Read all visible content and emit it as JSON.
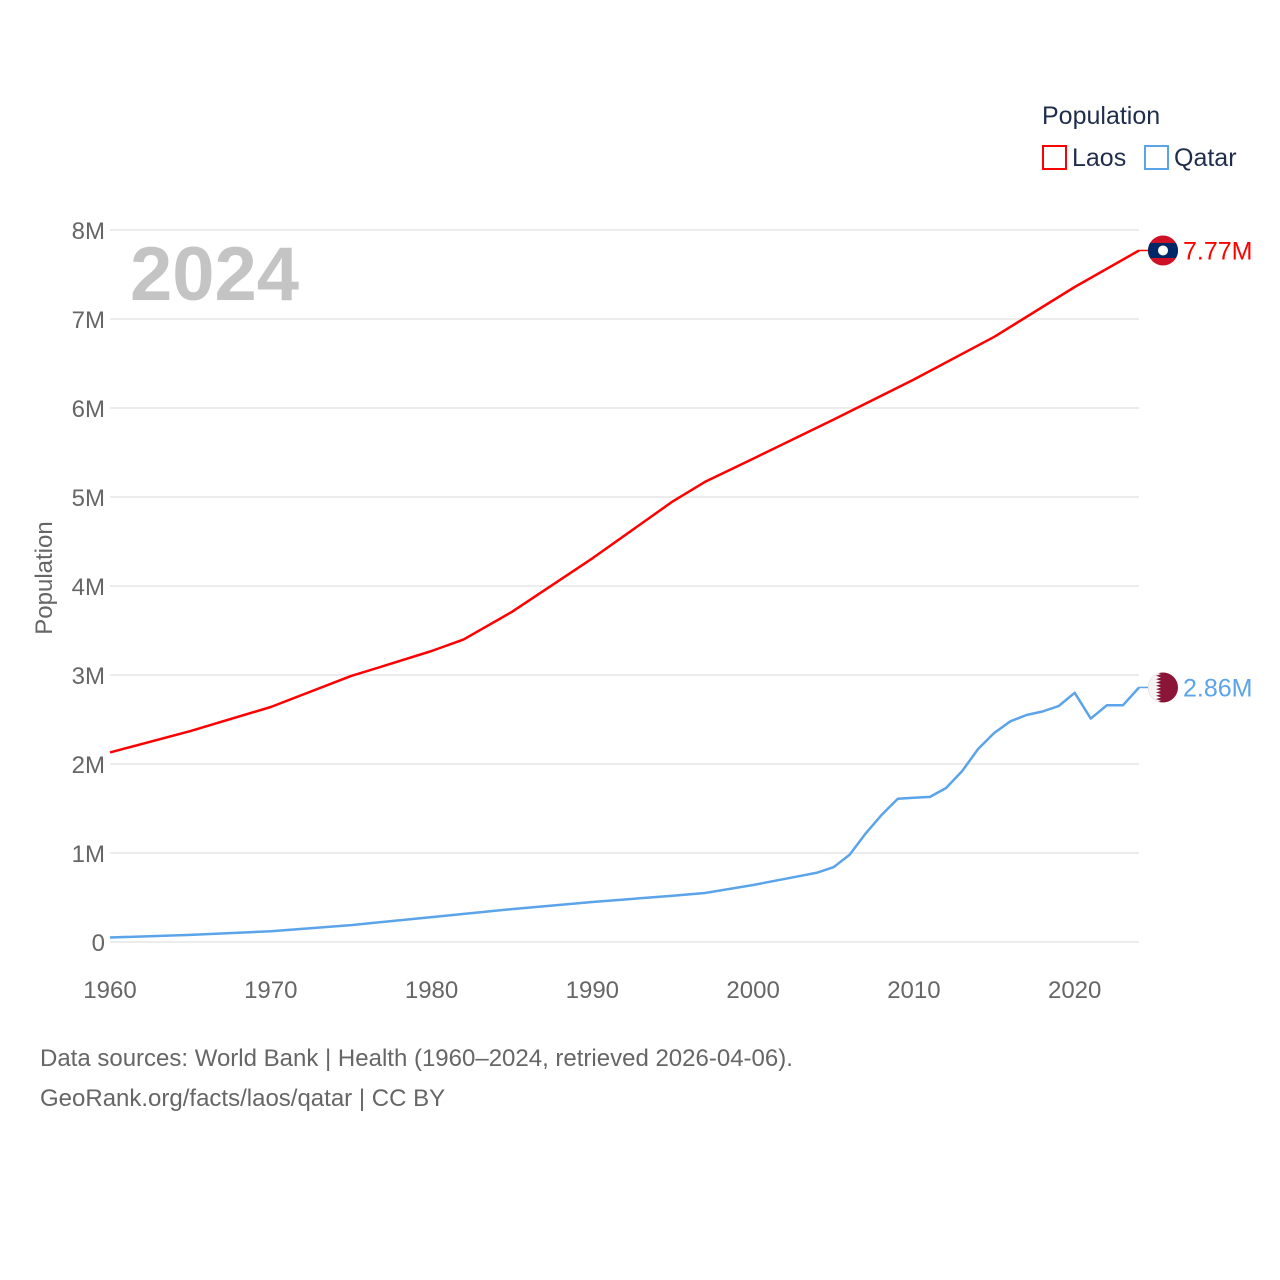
{
  "chart_data": {
    "type": "line",
    "title": "",
    "xlabel": "",
    "ylabel": "Population",
    "xlim": [
      1960,
      2024
    ],
    "ylim": [
      0,
      8000000
    ],
    "grid": true,
    "x_ticks": [
      "1960",
      "1970",
      "1980",
      "1990",
      "2000",
      "2010",
      "2020"
    ],
    "x_tick_values": [
      1960,
      1970,
      1980,
      1990,
      2000,
      2010,
      2020
    ],
    "y_ticks": [
      "0",
      "1M",
      "2M",
      "3M",
      "4M",
      "5M",
      "6M",
      "7M",
      "8M"
    ],
    "y_tick_values": [
      0,
      1000000,
      2000000,
      3000000,
      4000000,
      5000000,
      6000000,
      7000000,
      8000000
    ],
    "year_label": "2024",
    "legend": {
      "title": "Population",
      "placement": "top-right"
    },
    "series": [
      {
        "name": "Laos",
        "color": "#ff0000",
        "end_label": "7.77M",
        "flag": "laos-flag",
        "x": [
          1960,
          1965,
          1970,
          1975,
          1977,
          1980,
          1982,
          1985,
          1990,
          1995,
          1997,
          2000,
          2005,
          2010,
          2015,
          2020,
          2024
        ],
        "y": [
          2130000,
          2370000,
          2640000,
          2990000,
          3100000,
          3270000,
          3400000,
          3710000,
          4310000,
          4950000,
          5170000,
          5430000,
          5870000,
          6320000,
          6800000,
          7360000,
          7770000
        ]
      },
      {
        "name": "Qatar",
        "color": "#5ba4ea",
        "end_label": "2.86M",
        "flag": "qatar-flag",
        "x": [
          1960,
          1965,
          1970,
          1975,
          1980,
          1985,
          1990,
          1995,
          1997,
          2000,
          2002,
          2004,
          2005,
          2006,
          2007,
          2008,
          2009,
          2010,
          2011,
          2012,
          2013,
          2014,
          2015,
          2016,
          2017,
          2018,
          2019,
          2020,
          2021,
          2022,
          2023,
          2024
        ],
        "y": [
          50000,
          80000,
          120000,
          190000,
          280000,
          370000,
          450000,
          520000,
          550000,
          640000,
          710000,
          780000,
          840000,
          980000,
          1220000,
          1430000,
          1610000,
          1620000,
          1630000,
          1730000,
          1920000,
          2170000,
          2350000,
          2480000,
          2550000,
          2590000,
          2650000,
          2800000,
          2510000,
          2660000,
          2660000,
          2860000
        ]
      }
    ]
  },
  "footer": {
    "line1": "Data sources: World Bank | Health (1960–2024, retrieved 2026-04-06).",
    "line2": "GeoRank.org/facts/laos/qatar | CC BY"
  }
}
